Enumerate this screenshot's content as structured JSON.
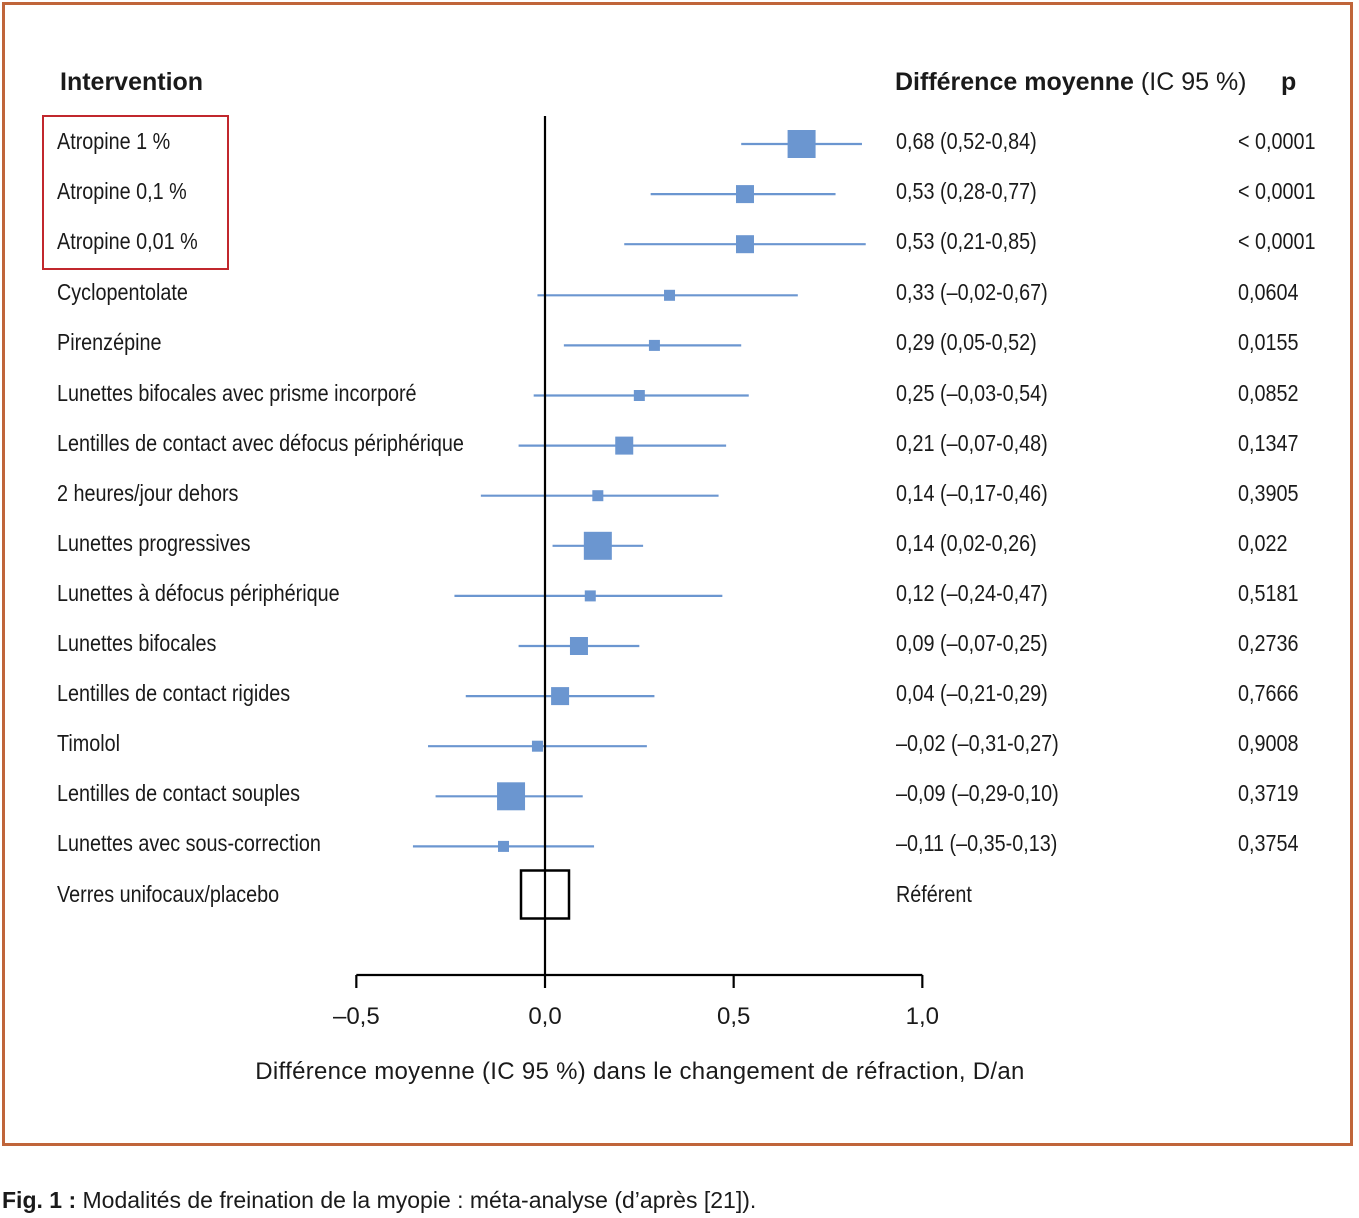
{
  "headers": {
    "intervention": "Intervention",
    "diff_bold": "Différence moyenne",
    "diff_ci": "(IC 95 %)",
    "p": "p"
  },
  "caption": {
    "label": "Fig. 1 :",
    "text": "Modalités de freination de la myopie : méta-analyse (d’après [21])."
  },
  "colors": {
    "frame": "#c0653a",
    "marker": "#6b96d0",
    "highlight": "#c1272d",
    "axis": "#000000"
  },
  "chart_data": {
    "type": "forest",
    "xlabel": "Différence moyenne (IC 95 %) dans le changement de réfraction, D/an",
    "xlim": [
      -0.5,
      1.0
    ],
    "xticks": [
      -0.5,
      0.0,
      0.5,
      1.0
    ],
    "xtick_labels": [
      "–0,5",
      "0,0",
      "0,5",
      "1,0"
    ],
    "reference_line": 0.0,
    "highlighted": [
      "Atropine 1 %",
      "Atropine 0,1 %",
      "Atropine 0,01 %"
    ],
    "rows": [
      {
        "label": "Atropine 1 %",
        "estimate": 0.68,
        "lower": 0.52,
        "upper": 0.84,
        "weight": "large",
        "ci_text": "0,68 (0,52-0,84)",
        "p": "< 0,0001"
      },
      {
        "label": "Atropine 0,1 %",
        "estimate": 0.53,
        "lower": 0.28,
        "upper": 0.77,
        "weight": "medium",
        "ci_text": "0,53 (0,28-0,77)",
        "p": "< 0,0001"
      },
      {
        "label": "Atropine 0,01 %",
        "estimate": 0.53,
        "lower": 0.21,
        "upper": 0.85,
        "weight": "medium",
        "ci_text": "0,53 (0,21-0,85)",
        "p": "< 0,0001"
      },
      {
        "label": "Cyclopentolate",
        "estimate": 0.33,
        "lower": -0.02,
        "upper": 0.67,
        "weight": "small",
        "ci_text": "0,33 (–0,02-0,67)",
        "p": "0,0604"
      },
      {
        "label": "Pirenzépine",
        "estimate": 0.29,
        "lower": 0.05,
        "upper": 0.52,
        "weight": "small",
        "ci_text": "0,29 (0,05-0,52)",
        "p": "0,0155"
      },
      {
        "label": "Lunettes bifocales avec prisme incorporé",
        "estimate": 0.25,
        "lower": -0.03,
        "upper": 0.54,
        "weight": "small",
        "ci_text": "0,25 (–0,03-0,54)",
        "p": "0,0852"
      },
      {
        "label": "Lentilles de contact avec défocus périphérique",
        "estimate": 0.21,
        "lower": -0.07,
        "upper": 0.48,
        "weight": "medium",
        "ci_text": "0,21 (–0,07-0,48)",
        "p": "0,1347"
      },
      {
        "label": "2 heures/jour dehors",
        "estimate": 0.14,
        "lower": -0.17,
        "upper": 0.46,
        "weight": "small",
        "ci_text": "0,14 (–0,17-0,46)",
        "p": "0,3905"
      },
      {
        "label": "Lunettes progressives",
        "estimate": 0.14,
        "lower": 0.02,
        "upper": 0.26,
        "weight": "large",
        "ci_text": "0,14 (0,02-0,26)",
        "p": "0,022"
      },
      {
        "label": "Lunettes à défocus périphérique",
        "estimate": 0.12,
        "lower": -0.24,
        "upper": 0.47,
        "weight": "small",
        "ci_text": "0,12 (–0,24-0,47)",
        "p": "0,5181"
      },
      {
        "label": "Lunettes bifocales",
        "estimate": 0.09,
        "lower": -0.07,
        "upper": 0.25,
        "weight": "medium",
        "ci_text": "0,09 (–0,07-0,25)",
        "p": "0,2736"
      },
      {
        "label": "Lentilles de contact rigides",
        "estimate": 0.04,
        "lower": -0.21,
        "upper": 0.29,
        "weight": "medium",
        "ci_text": "0,04 (–0,21-0,29)",
        "p": "0,7666"
      },
      {
        "label": "Timolol",
        "estimate": -0.02,
        "lower": -0.31,
        "upper": 0.27,
        "weight": "small",
        "ci_text": "–0,02 (–0,31-0,27)",
        "p": "0,9008"
      },
      {
        "label": "Lentilles de contact souples",
        "estimate": -0.09,
        "lower": -0.29,
        "upper": 0.1,
        "weight": "large",
        "ci_text": "–0,09 (–0,29-0,10)",
        "p": "0,3719"
      },
      {
        "label": "Lunettes avec sous-correction",
        "estimate": -0.11,
        "lower": -0.35,
        "upper": 0.13,
        "weight": "small",
        "ci_text": "–0,11 (–0,35-0,13)",
        "p": "0,3754"
      },
      {
        "label": "Verres unifocaux/placebo",
        "estimate": 0.0,
        "lower": null,
        "upper": null,
        "weight": "reference",
        "ci_text": "Référent",
        "p": ""
      }
    ]
  }
}
